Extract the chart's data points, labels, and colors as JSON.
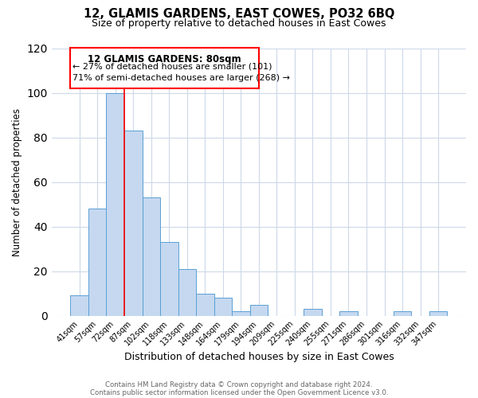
{
  "title": "12, GLAMIS GARDENS, EAST COWES, PO32 6BQ",
  "subtitle": "Size of property relative to detached houses in East Cowes",
  "xlabel": "Distribution of detached houses by size in East Cowes",
  "ylabel": "Number of detached properties",
  "bar_labels": [
    "41sqm",
    "57sqm",
    "72sqm",
    "87sqm",
    "102sqm",
    "118sqm",
    "133sqm",
    "148sqm",
    "164sqm",
    "179sqm",
    "194sqm",
    "209sqm",
    "225sqm",
    "240sqm",
    "255sqm",
    "271sqm",
    "286sqm",
    "301sqm",
    "316sqm",
    "332sqm",
    "347sqm"
  ],
  "bar_heights": [
    9,
    48,
    100,
    83,
    53,
    33,
    21,
    10,
    8,
    2,
    5,
    0,
    0,
    3,
    0,
    2,
    0,
    0,
    2,
    0,
    2
  ],
  "bar_color": "#c5d8f0",
  "bar_edge_color": "#5a9fd4",
  "redline_index": 2,
  "ylim": [
    0,
    120
  ],
  "yticks": [
    0,
    20,
    40,
    60,
    80,
    100,
    120
  ],
  "annotation_title": "12 GLAMIS GARDENS: 80sqm",
  "annotation_line1": "← 27% of detached houses are smaller (101)",
  "annotation_line2": "71% of semi-detached houses are larger (268) →",
  "footer1": "Contains HM Land Registry data © Crown copyright and database right 2024.",
  "footer2": "Contains public sector information licensed under the Open Government Licence v3.0.",
  "background_color": "#ffffff",
  "grid_color": "#ccd9e8"
}
